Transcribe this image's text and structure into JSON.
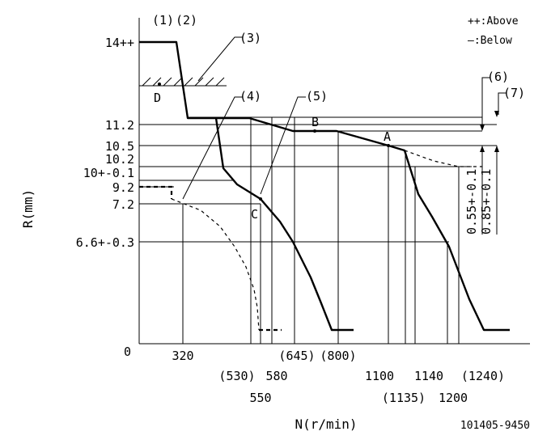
{
  "diagram": {
    "y_axis_label": "R(mm)",
    "x_axis_label": "N(r/min)",
    "code": "101405-9450",
    "legend": {
      "above": "++:Above",
      "below": "—:Below"
    },
    "callouts": {
      "c1": "(1)",
      "c2": "(2)",
      "c3": "(3)",
      "c4": "(4)",
      "c5": "(5)",
      "c6": "(6)",
      "c7": "(7)"
    },
    "points": {
      "a": "A",
      "b": "B",
      "c": "C",
      "d": "D"
    },
    "y_ticks": {
      "t14": "14++",
      "t11_2": "11.2",
      "t10_5": "10.5",
      "t10_2": "10.2",
      "t10": "10+-0.1",
      "t9_2": "9.2",
      "t7_2": "7.2",
      "t6_6": "6.6+-0.3",
      "t0": "0"
    },
    "x_ticks": {
      "t320": "320",
      "t530": "(530)",
      "t550": "550",
      "t580": "580",
      "t645": "(645)",
      "t800": "(800)",
      "t1100": "1100",
      "t1135": "(1135)",
      "t1140": "1140",
      "t1200": "1200",
      "t1240": "(1240)"
    },
    "dimensions": {
      "d055": "0.55+-0.1",
      "d085": "0.85+-0.1"
    }
  }
}
